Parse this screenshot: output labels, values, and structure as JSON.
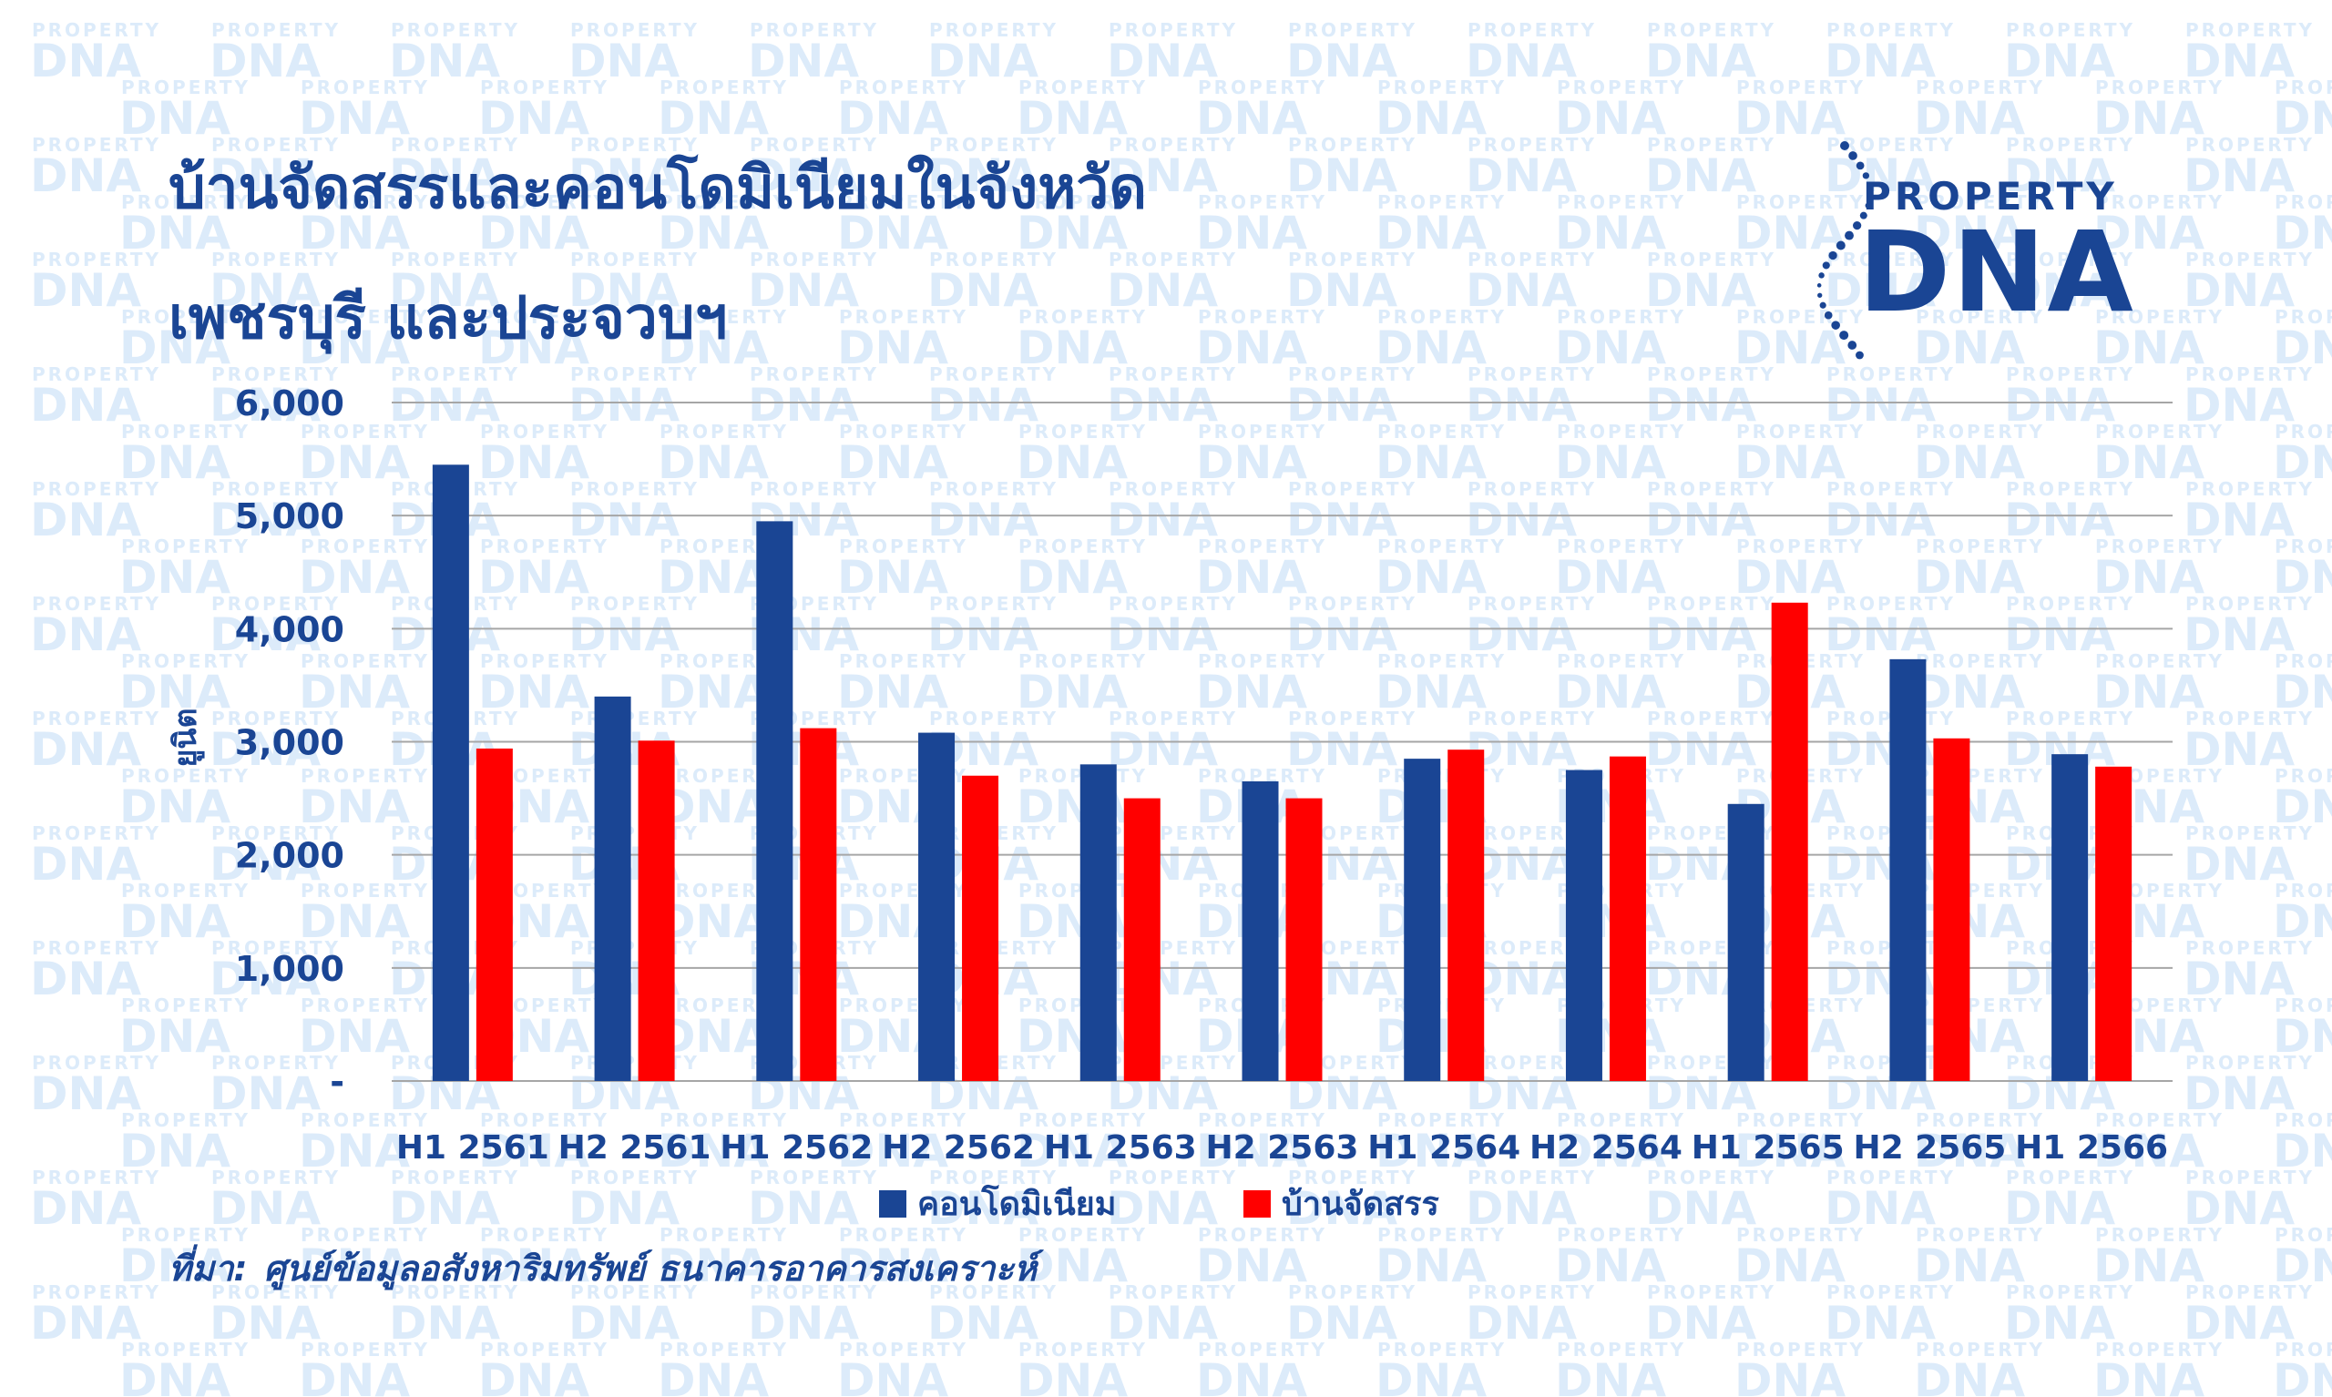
{
  "title": {
    "line1": "บ้านจัดสรรและคอนโดมิเนียมในจังหวัด",
    "line2": "เพชรบุรี และประจวบฯ"
  },
  "logo": {
    "word1": "PROPERTY",
    "word2": "DNA"
  },
  "watermark": {
    "word1": "PROPERTY",
    "word2": "DNA"
  },
  "source": {
    "label": "ที่มา:",
    "text": "ศูนย์ข้อมูลอสังหาริมทรัพย์ ธนาคารอาคารสงเคราะห์"
  },
  "colors": {
    "condo": "#1a4594",
    "house": "#ff0000",
    "title": "#1a4594",
    "watermark": "#dcebfa",
    "grid": "#a6a6a6"
  },
  "chart_data": {
    "type": "bar",
    "title": "บ้านจัดสรรและคอนโดมิเนียมในจังหวัด เพชรบุรี และประจวบฯ",
    "xlabel": "",
    "ylabel": "ยูนิต",
    "ylim": [
      0,
      6000
    ],
    "yticks": [
      0,
      1000,
      2000,
      3000,
      4000,
      5000,
      6000
    ],
    "ytick_labels": [
      "-",
      "1,000",
      "2,000",
      "3,000",
      "4,000",
      "5,000",
      "6,000"
    ],
    "grid": true,
    "legend_position": "bottom",
    "categories": [
      "H1 2561",
      "H2 2561",
      "H1 2562",
      "H2 2562",
      "H1 2563",
      "H2 2563",
      "H1 2564",
      "H2 2564",
      "H1 2565",
      "H2 2565",
      "H1 2566"
    ],
    "series": [
      {
        "name": "คอนโดมิเนียม",
        "color": "#1a4594",
        "values": [
          5450,
          3400,
          4950,
          3080,
          2800,
          2650,
          2850,
          2750,
          2450,
          3730,
          2890
        ]
      },
      {
        "name": "บ้านจัดสรร",
        "color": "#ff0000",
        "values": [
          2940,
          3010,
          3120,
          2700,
          2500,
          2500,
          2930,
          2870,
          4230,
          3030,
          2780
        ]
      }
    ]
  }
}
